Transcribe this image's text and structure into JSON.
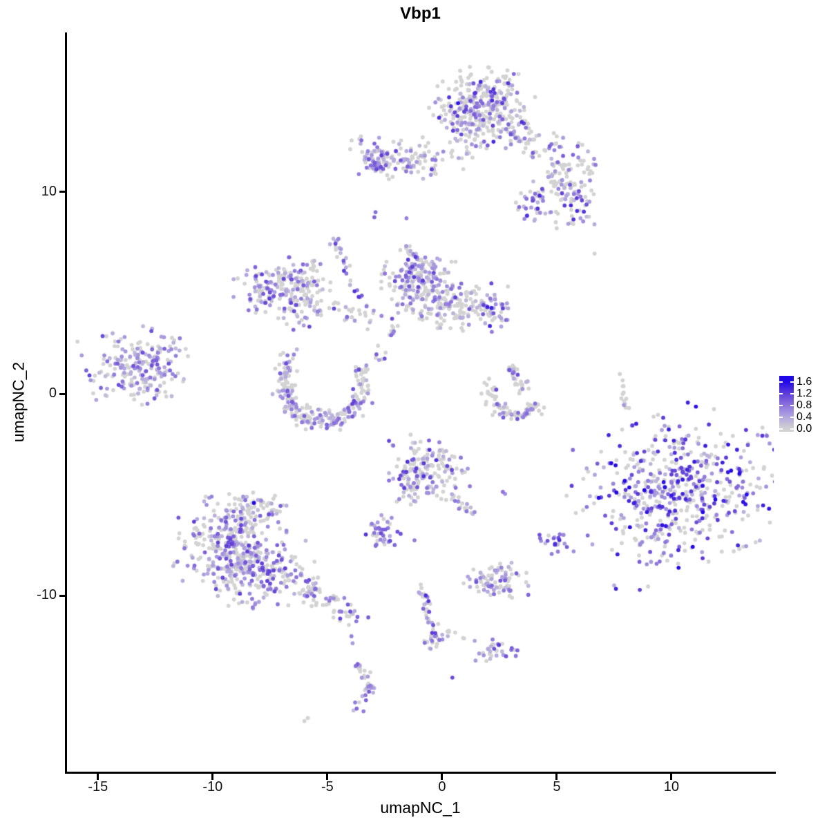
{
  "title": "Vbp1",
  "chart_data": {
    "type": "scatter",
    "title": "Vbp1",
    "xlabel": "umapNC_1",
    "ylabel": "umapNC_2",
    "xlim": [
      -16.35,
      14.46
    ],
    "ylim": [
      -18.71,
      17.9
    ],
    "grid": false,
    "x_ticks": [
      {
        "v": -15,
        "label": "-15"
      },
      {
        "v": -10,
        "label": "-10"
      },
      {
        "v": -5,
        "label": "-5"
      },
      {
        "v": 0,
        "label": "0"
      },
      {
        "v": 5,
        "label": "5"
      },
      {
        "v": 10,
        "label": "10"
      }
    ],
    "y_ticks": [
      {
        "v": 10,
        "label": "10"
      },
      {
        "v": 0,
        "label": "0"
      },
      {
        "v": -10,
        "label": "-10"
      }
    ],
    "legend": {
      "position": "right",
      "min": 0.0,
      "max": 1.6,
      "tick_values": [
        1.6,
        1.2,
        0.8,
        0.4,
        0.0
      ],
      "tick_labels": [
        "1.6",
        "1.2",
        "0.8",
        "0.4",
        "0.0"
      ]
    },
    "colors": {
      "background": "#ffffff",
      "axis": "#000000",
      "zero_expression": "#D3D3D3",
      "ramp": [
        [
          0,
          "#D3D3D3"
        ],
        [
          0.25,
          "#B2A6DF"
        ],
        [
          0.5,
          "#8C74DC"
        ],
        [
          0.75,
          "#5E3CD9"
        ],
        [
          1,
          "#2108E8"
        ]
      ]
    },
    "point_radius": 2.9,
    "seed": 42,
    "cluster_format": "[cx, cy, sigma_x, sigma_y, rotation_deg, n_points, expressed_fraction, value_max, value_skew]",
    "clusters": [
      [
        1.7,
        14.2,
        0.95,
        0.85,
        -10,
        320,
        0.38,
        1.35,
        1.7
      ],
      [
        1.7,
        12.9,
        1.25,
        0.45,
        -5,
        40,
        0.3,
        1.0,
        1.7
      ],
      [
        -2.1,
        11.6,
        0.85,
        0.42,
        -8,
        120,
        0.5,
        1.2,
        1.7
      ],
      [
        -2.85,
        11.45,
        0.3,
        0.3,
        0,
        30,
        0.8,
        1.2,
        1.7
      ],
      [
        5.6,
        11.2,
        0.7,
        0.55,
        0,
        55,
        0.3,
        1.0,
        1.7
      ],
      [
        4.1,
        9.35,
        0.4,
        0.5,
        0,
        40,
        0.65,
        1.35,
        1.5
      ],
      [
        5.8,
        9.5,
        0.55,
        0.55,
        0,
        55,
        0.6,
        1.35,
        1.5
      ],
      [
        -7.55,
        5.3,
        0.75,
        0.55,
        10,
        90,
        0.6,
        1.2,
        1.7
      ],
      [
        -6.2,
        5.65,
        0.65,
        0.38,
        -15,
        55,
        0.3,
        1.0,
        1.7
      ],
      [
        -6.15,
        4.35,
        0.75,
        0.5,
        0,
        75,
        0.45,
        1.15,
        1.7
      ],
      [
        -5.55,
        6.3,
        0.22,
        0.22,
        0,
        10,
        0.5,
        1.0,
        1.7
      ],
      [
        -1.2,
        5.95,
        0.55,
        0.5,
        0,
        90,
        0.6,
        1.25,
        1.7
      ],
      [
        -0.65,
        4.9,
        0.85,
        0.7,
        0,
        150,
        0.3,
        1.1,
        1.7
      ],
      [
        1.0,
        4.3,
        0.8,
        0.5,
        0,
        110,
        0.35,
        1.2,
        1.7
      ],
      [
        2.35,
        4.05,
        0.3,
        0.55,
        0,
        30,
        0.7,
        1.45,
        1.4
      ],
      [
        -13.25,
        1.35,
        0.95,
        0.8,
        15,
        200,
        0.58,
        1.15,
        1.7
      ],
      [
        -0.55,
        -3.9,
        0.75,
        0.8,
        0,
        145,
        0.42,
        1.3,
        1.7
      ],
      [
        -1.35,
        -3.95,
        0.22,
        0.65,
        0,
        35,
        0.75,
        1.3,
        1.7
      ],
      [
        -2.62,
        -6.9,
        0.42,
        0.38,
        0,
        40,
        0.75,
        1.25,
        1.6
      ],
      [
        10.35,
        -4.75,
        1.95,
        1.6,
        25,
        540,
        0.55,
        1.6,
        1.1
      ],
      [
        5.0,
        -7.3,
        0.32,
        0.3,
        0,
        22,
        0.8,
        1.35,
        1.4
      ],
      [
        -9.25,
        -7.2,
        1.05,
        0.9,
        0,
        250,
        0.5,
        1.2,
        1.7
      ],
      [
        -8.1,
        -8.8,
        1.15,
        0.8,
        -10,
        250,
        0.5,
        1.2,
        1.7
      ],
      [
        -8.3,
        -5.7,
        0.55,
        0.45,
        0,
        65,
        0.45,
        1.2,
        1.7
      ],
      [
        2.35,
        -9.35,
        0.6,
        0.42,
        0,
        85,
        0.45,
        1.1,
        1.7
      ],
      [
        -0.25,
        -12.1,
        0.28,
        0.3,
        0,
        22,
        0.6,
        1.2,
        1.6
      ],
      [
        2.3,
        -12.6,
        0.42,
        0.28,
        0,
        32,
        0.6,
        1.45,
        1.4
      ],
      [
        -6.75,
        1.5,
        0.3,
        0.3,
        0,
        18,
        0.6,
        1.1,
        1.7
      ]
    ],
    "stream_format": "[x1, y1, x2, y2, n_points, jitter, expressed_fraction, value_max]",
    "streams": [
      [
        2.9,
        13.2,
        5.2,
        11.9,
        45,
        0.4,
        0.25,
        1.0
      ],
      [
        4.75,
        10.9,
        5.35,
        10.0,
        12,
        0.15,
        0.3,
        1.0
      ],
      [
        -0.9,
        11.55,
        1.5,
        11.75,
        22,
        0.25,
        0.25,
        1.0
      ],
      [
        -4.85,
        7.75,
        -3.55,
        4.75,
        26,
        0.12,
        0.7,
        1.25
      ],
      [
        -5.4,
        4.4,
        -2.6,
        3.6,
        30,
        0.25,
        0.3,
        1.0
      ],
      [
        -1.25,
        6.6,
        -1.5,
        7.3,
        9,
        0.1,
        0.4,
        1.0
      ],
      [
        -1.9,
        3.35,
        -2.9,
        1.6,
        13,
        0.15,
        0.5,
        1.1
      ],
      [
        2.95,
        1.5,
        3.55,
        0.2,
        30,
        0.15,
        0.35,
        1.1
      ],
      [
        7.8,
        1.05,
        8.0,
        -0.7,
        14,
        0.07,
        0.2,
        1.0
      ],
      [
        0.4,
        -5.1,
        1.35,
        -5.9,
        18,
        0.12,
        0.4,
        1.1
      ],
      [
        -6.35,
        -9.4,
        -3.8,
        -10.9,
        70,
        0.28,
        0.35,
        1.15
      ],
      [
        -0.95,
        -9.45,
        -0.4,
        -11.9,
        30,
        0.1,
        0.45,
        1.3
      ],
      [
        0.2,
        -11.85,
        0.9,
        -11.95,
        6,
        0.08,
        0.1,
        0.8
      ],
      [
        -3.85,
        -13.3,
        -3.1,
        -14.4,
        18,
        0.12,
        0.65,
        1.2
      ],
      [
        -3.1,
        -14.4,
        -3.75,
        -15.6,
        18,
        0.12,
        0.65,
        1.2
      ],
      [
        -12.4,
        2.1,
        -11.5,
        2.7,
        10,
        0.12,
        0.5,
        1.0
      ]
    ],
    "arc_format": "[cx, cy, rx, ry, angle_start_deg, angle_end_deg, thickness, n_points, expressed_fraction, value_max]",
    "arcs": [
      [
        -5.15,
        0.45,
        1.75,
        1.8,
        150,
        395,
        0.13,
        225,
        0.28,
        1.15
      ],
      [
        3.25,
        0.05,
        1.15,
        1.1,
        160,
        330,
        0.15,
        80,
        0.22,
        1.1
      ]
    ],
    "single_format": "[x, y, expression_value]",
    "singles": [
      [
        0.7,
        14.4,
        1.5
      ],
      [
        -8.2,
        -5.4,
        1.6
      ],
      [
        12.6,
        -3.8,
        1.55
      ],
      [
        9.6,
        -6.5,
        1.5
      ],
      [
        -2.9,
        9.0,
        0.85
      ],
      [
        -2.95,
        8.75,
        0.9
      ],
      [
        -1.55,
        8.7,
        0.7
      ],
      [
        6.65,
        6.95,
        0
      ],
      [
        5.0,
        8.2,
        0
      ],
      [
        0.45,
        -14.05,
        1.1
      ],
      [
        -3.95,
        -12.0,
        0.7
      ],
      [
        -3.9,
        -12.35,
        0.5
      ],
      [
        -5.85,
        -16.05,
        0
      ],
      [
        -6.0,
        -16.2,
        0
      ],
      [
        1.85,
        0.55,
        0
      ],
      [
        2.05,
        0.75,
        0
      ],
      [
        1.95,
        0.45,
        0
      ],
      [
        2.65,
        -4.85,
        0.8
      ],
      [
        2.75,
        -4.95,
        0.6
      ],
      [
        -1.2,
        -7.25,
        0.75
      ]
    ]
  }
}
